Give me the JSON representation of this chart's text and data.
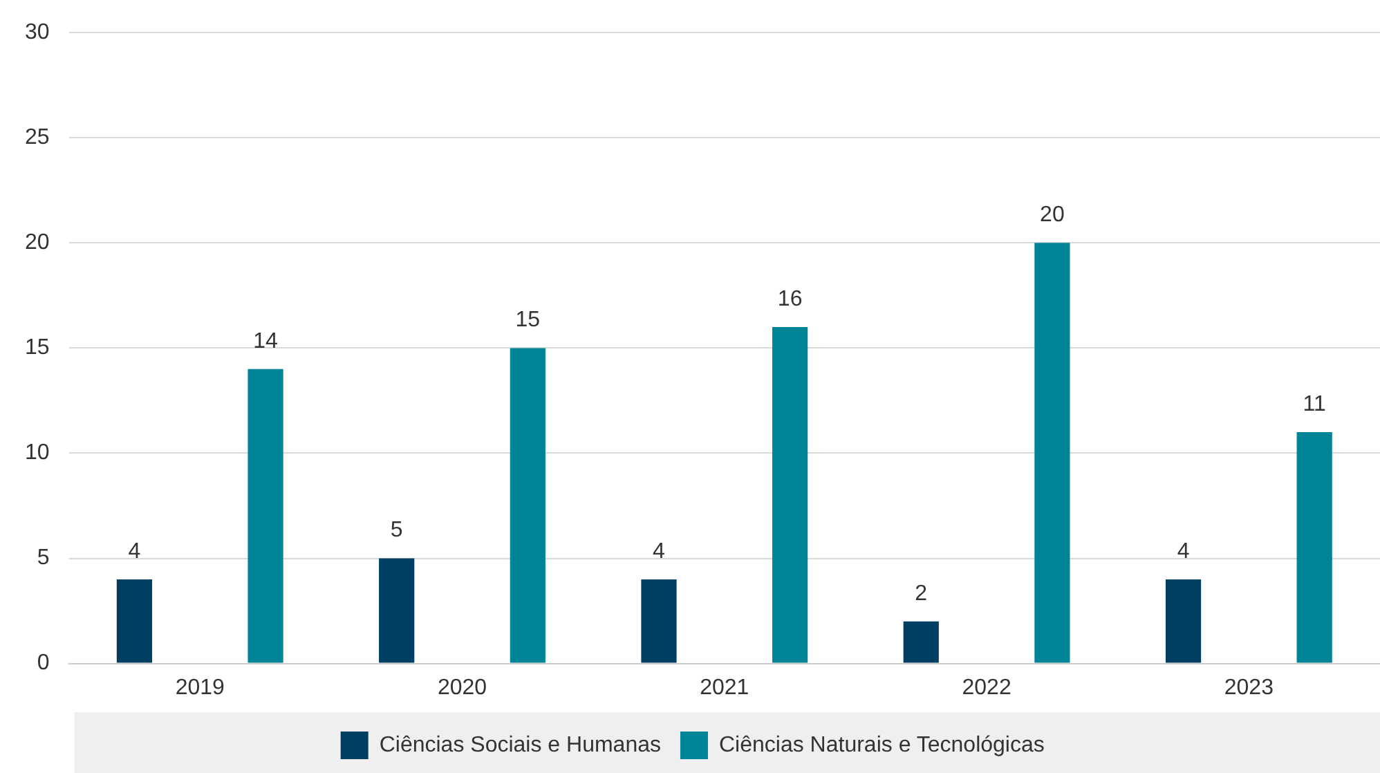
{
  "chart_data": {
    "type": "bar",
    "categories": [
      "2019",
      "2020",
      "2021",
      "2022",
      "2023"
    ],
    "series": [
      {
        "name": "Ciências Sociais e Humanas",
        "color": "#003f62",
        "values": [
          4,
          5,
          4,
          2,
          4
        ]
      },
      {
        "name": "Ciências Naturais e Tecnológicas",
        "color": "#008598",
        "values": [
          14,
          15,
          16,
          20,
          11
        ]
      }
    ],
    "ylim": [
      0,
      30
    ],
    "yticks": [
      0,
      5,
      10,
      15,
      20,
      25,
      30
    ],
    "grid": "y",
    "legend": "bottom",
    "data_labels": true
  }
}
